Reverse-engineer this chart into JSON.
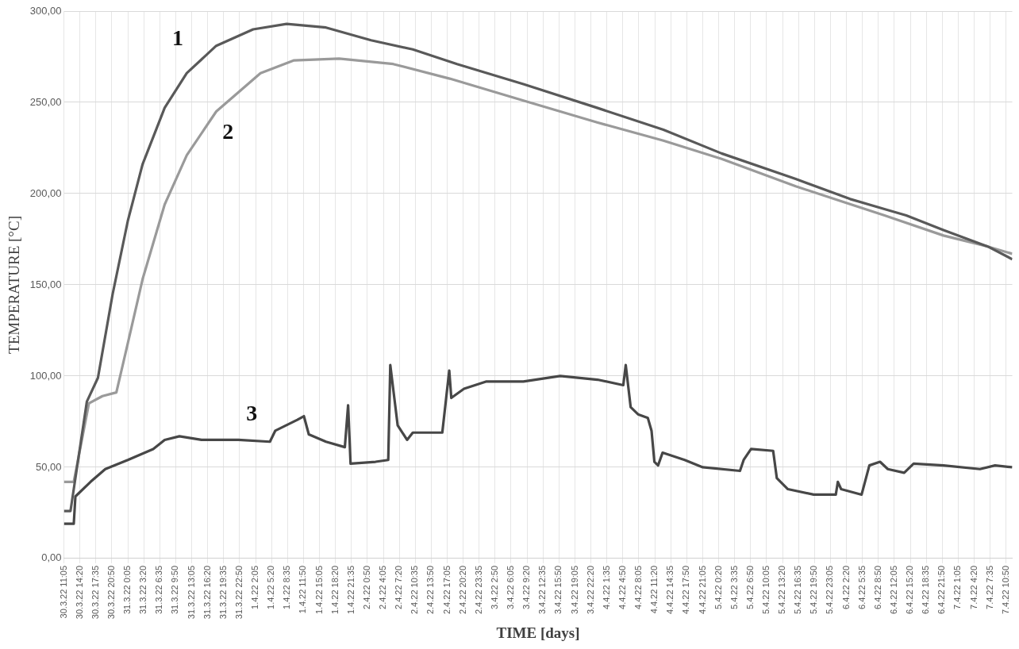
{
  "chart_data": {
    "type": "line",
    "xlabel": "TIME [days]",
    "ylabel": "TEMPERATURE [°C]",
    "grid": true,
    "xlim": [
      "--03-30T11:05",
      "--04-07T12:05"
    ],
    "ylim": [
      0,
      300
    ],
    "yticks": [
      {
        "value": 0,
        "label": "0,00"
      },
      {
        "value": 50,
        "label": "50,00"
      },
      {
        "value": 100,
        "label": "100,00"
      },
      {
        "value": 150,
        "label": "150,00"
      },
      {
        "value": 200,
        "label": "200,00"
      },
      {
        "value": 250,
        "label": "250,00"
      },
      {
        "value": 300,
        "label": "300,00"
      }
    ],
    "xticks": [
      {
        "value": "--03-30T11:05",
        "label": "30.3.22 11:05"
      },
      {
        "value": "--03-30T14:20",
        "label": "30.3.22 14:20"
      },
      {
        "value": "--03-30T17:35",
        "label": "30.3.22 17:35"
      },
      {
        "value": "--03-30T20:50",
        "label": "30.3.22 20:50"
      },
      {
        "value": "--03-31T00:05",
        "label": "31.3.22 0:05"
      },
      {
        "value": "--03-31T03:20",
        "label": "31.3.22 3:20"
      },
      {
        "value": "--03-31T06:35",
        "label": "31.3.22 6:35"
      },
      {
        "value": "--03-31T09:50",
        "label": "31.3.22 9:50"
      },
      {
        "value": "--03-31T13:05",
        "label": "31.3.22 13:05"
      },
      {
        "value": "--03-31T16:20",
        "label": "31.3.22 16:20"
      },
      {
        "value": "--03-31T19:35",
        "label": "31.3.22 19:35"
      },
      {
        "value": "--03-31T22:50",
        "label": "31.3.22 22:50"
      },
      {
        "value": "--04-01T02:05",
        "label": "1.4.22 2:05"
      },
      {
        "value": "--04-01T05:20",
        "label": "1.4.22 5:20"
      },
      {
        "value": "--04-01T08:35",
        "label": "1.4.22 8:35"
      },
      {
        "value": "--04-01T11:50",
        "label": "1.4.22 11:50"
      },
      {
        "value": "--04-01T15:05",
        "label": "1.4.22 15:05"
      },
      {
        "value": "--04-01T18:20",
        "label": "1.4.22 18:20"
      },
      {
        "value": "--04-01T21:35",
        "label": "1.4.22 21:35"
      },
      {
        "value": "--04-02T00:50",
        "label": "2.4.22 0:50"
      },
      {
        "value": "--04-02T04:05",
        "label": "2.4.22 4:05"
      },
      {
        "value": "--04-02T07:20",
        "label": "2.4.22 7:20"
      },
      {
        "value": "--04-02T10:35",
        "label": "2.4.22 10:35"
      },
      {
        "value": "--04-02T13:50",
        "label": "2.4.22 13:50"
      },
      {
        "value": "--04-02T17:05",
        "label": "2.4.22 17:05"
      },
      {
        "value": "--04-02T20:20",
        "label": "2.4.22 20:20"
      },
      {
        "value": "--04-02T23:35",
        "label": "2.4.22 23:35"
      },
      {
        "value": "--04-03T02:50",
        "label": "3.4.22 2:50"
      },
      {
        "value": "--04-03T06:05",
        "label": "3.4.22 6:05"
      },
      {
        "value": "--04-03T09:20",
        "label": "3.4.22 9:20"
      },
      {
        "value": "--04-03T12:35",
        "label": "3.4.22 12:35"
      },
      {
        "value": "--04-03T15:50",
        "label": "3.4.22 15:50"
      },
      {
        "value": "--04-03T19:05",
        "label": "3.4.22 19:05"
      },
      {
        "value": "--04-03T22:20",
        "label": "3.4.22 22:20"
      },
      {
        "value": "--04-04T01:35",
        "label": "4.4.22 1:35"
      },
      {
        "value": "--04-04T04:50",
        "label": "4.4.22 4:50"
      },
      {
        "value": "--04-04T08:05",
        "label": "4.4.22 8:05"
      },
      {
        "value": "--04-04T11:20",
        "label": "4.4.22 11:20"
      },
      {
        "value": "--04-04T14:35",
        "label": "4.4.22 14:35"
      },
      {
        "value": "--04-04T17:50",
        "label": "4.4.22 17:50"
      },
      {
        "value": "--04-04T21:05",
        "label": "4.4.22 21:05"
      },
      {
        "value": "--04-05T00:20",
        "label": "5.4.22 0:20"
      },
      {
        "value": "--04-05T03:35",
        "label": "5.4.22 3:35"
      },
      {
        "value": "--04-05T06:50",
        "label": "5.4.22 6:50"
      },
      {
        "value": "--04-05T10:05",
        "label": "5.4.22 10:05"
      },
      {
        "value": "--04-05T13:20",
        "label": "5.4.22 13:20"
      },
      {
        "value": "--04-05T16:35",
        "label": "5.4.22 16:35"
      },
      {
        "value": "--04-05T19:50",
        "label": "5.4.22 19:50"
      },
      {
        "value": "--04-05T23:05",
        "label": "5.4.22 23:05"
      },
      {
        "value": "--04-06T02:20",
        "label": "6.4.22 2:20"
      },
      {
        "value": "--04-06T05:35",
        "label": "6.4.22 5:35"
      },
      {
        "value": "--04-06T08:50",
        "label": "6.4.22 8:50"
      },
      {
        "value": "--04-06T12:05",
        "label": "6.4.22 12:05"
      },
      {
        "value": "--04-06T15:20",
        "label": "6.4.22 15:20"
      },
      {
        "value": "--04-06T18:35",
        "label": "6.4.22 18:35"
      },
      {
        "value": "--04-06T21:50",
        "label": "6.4.22 21:50"
      },
      {
        "value": "--04-07T01:05",
        "label": "7.4.22 1:05"
      },
      {
        "value": "--04-07T04:20",
        "label": "7.4.22 4:20"
      },
      {
        "value": "--04-07T07:35",
        "label": "7.4.22 7:35"
      },
      {
        "value": "--04-07T10:50",
        "label": "7.4.22 10:50"
      }
    ],
    "annotations": [
      "1",
      "2",
      "3"
    ],
    "series": [
      {
        "color": "#595959",
        "x": [
          "--03-30T11:05",
          "--03-30T12:25",
          "--03-30T15:45",
          "--03-30T18:00",
          "--03-30T21:00",
          "--03-31T00:05",
          "--03-31T03:05",
          "--03-31T07:35",
          "--03-31T12:05",
          "--03-31T18:05",
          "--04-01T01:35",
          "--04-01T08:25",
          "--04-01T16:25",
          "--04-02T01:35",
          "--04-02T10:05",
          "--04-02T19:05",
          "--04-03T08:35",
          "--04-03T23:35",
          "--04-04T13:05",
          "--04-05T00:55",
          "--04-05T16:00",
          "--04-06T03:05",
          "--04-06T10:45",
          "--04-06T14:30",
          "--04-06T22:05",
          "--04-07T07:05",
          "--04-07T12:05"
        ],
        "values": [
          26,
          26,
          86,
          99,
          145,
          185,
          216,
          247,
          266,
          281,
          290,
          293,
          291,
          284,
          279,
          271,
          260,
          247,
          235,
          222,
          208,
          197,
          191,
          188,
          180,
          171,
          164
        ]
      },
      {
        "color": "#9a9a9a",
        "x": [
          "--03-30T11:05",
          "--03-30T13:05",
          "--03-30T16:10",
          "--03-30T18:55",
          "--03-30T21:45",
          "--03-31T00:05",
          "--03-31T03:05",
          "--03-31T07:35",
          "--03-31T12:05",
          "--03-31T18:05",
          "--04-01T03:05",
          "--04-01T09:55",
          "--04-01T19:05",
          "--04-02T06:05",
          "--04-02T17:35",
          "--04-03T08:35",
          "--04-03T23:35",
          "--04-04T13:05",
          "--04-05T00:55",
          "--04-05T16:00",
          "--04-06T10:05",
          "--04-06T22:05",
          "--04-07T07:05",
          "--04-07T12:05"
        ],
        "values": [
          42,
          42,
          85,
          89,
          91,
          118,
          153,
          194,
          221,
          245,
          266,
          273,
          274,
          271,
          263,
          251,
          239,
          229,
          219,
          204,
          188,
          177,
          171,
          167
        ]
      },
      {
        "color": "#474747",
        "x": [
          "--03-30T11:05",
          "--03-30T13:05",
          "--03-30T13:25",
          "--03-30T16:30",
          "--03-30T19:30",
          "--03-31T00:05",
          "--03-31T05:15",
          "--03-31T07:35",
          "--03-31T10:35",
          "--03-31T15:05",
          "--03-31T22:35",
          "--04-01T05:00",
          "--04-01T06:05",
          "--04-01T10:35",
          "--04-01T11:55",
          "--04-01T12:55",
          "--04-01T16:25",
          "--04-01T20:15",
          "--04-01T20:55",
          "--04-01T21:25",
          "--04-02T02:30",
          "--04-02T05:05",
          "--04-02T05:30",
          "--04-02T07:00",
          "--04-02T08:55",
          "--04-02T10:05",
          "--04-02T16:05",
          "--04-02T17:30",
          "--04-02T17:55",
          "--04-02T20:30",
          "--04-03T01:05",
          "--04-03T08:35",
          "--04-03T16:05",
          "--04-03T23:40",
          "--04-04T04:55",
          "--04-04T05:25",
          "--04-04T06:25",
          "--04-04T07:55",
          "--04-04T09:55",
          "--04-04T10:40",
          "--04-04T11:15",
          "--04-04T12:00",
          "--04-04T12:55",
          "--04-04T17:25",
          "--04-04T21:05",
          "--04-05T04:40",
          "--04-05T05:25",
          "--04-05T06:55",
          "--04-05T11:25",
          "--04-05T12:10",
          "--04-05T14:25",
          "--04-05T19:40",
          "--04-06T00:10",
          "--04-06T00:35",
          "--04-06T01:15",
          "--04-06T05:25",
          "--04-06T07:00",
          "--04-06T09:10",
          "--04-06T10:45",
          "--04-06T14:05",
          "--04-06T16:00",
          "--04-06T22:05",
          "--04-07T05:30",
          "--04-07T08:35",
          "--04-07T12:05"
        ],
        "values": [
          19,
          19,
          34,
          42,
          49,
          54,
          60,
          65,
          67,
          65,
          65,
          64,
          70,
          76,
          78,
          68,
          64,
          61,
          84,
          52,
          53,
          54,
          106,
          73,
          65,
          69,
          69,
          103,
          88,
          93,
          97,
          97,
          100,
          98,
          95,
          106,
          83,
          79,
          77,
          70,
          53,
          51,
          58,
          54,
          50,
          48,
          54,
          60,
          59,
          44,
          38,
          35,
          35,
          42,
          38,
          35,
          51,
          53,
          49,
          47,
          52,
          51,
          49,
          51,
          50
        ]
      }
    ]
  }
}
